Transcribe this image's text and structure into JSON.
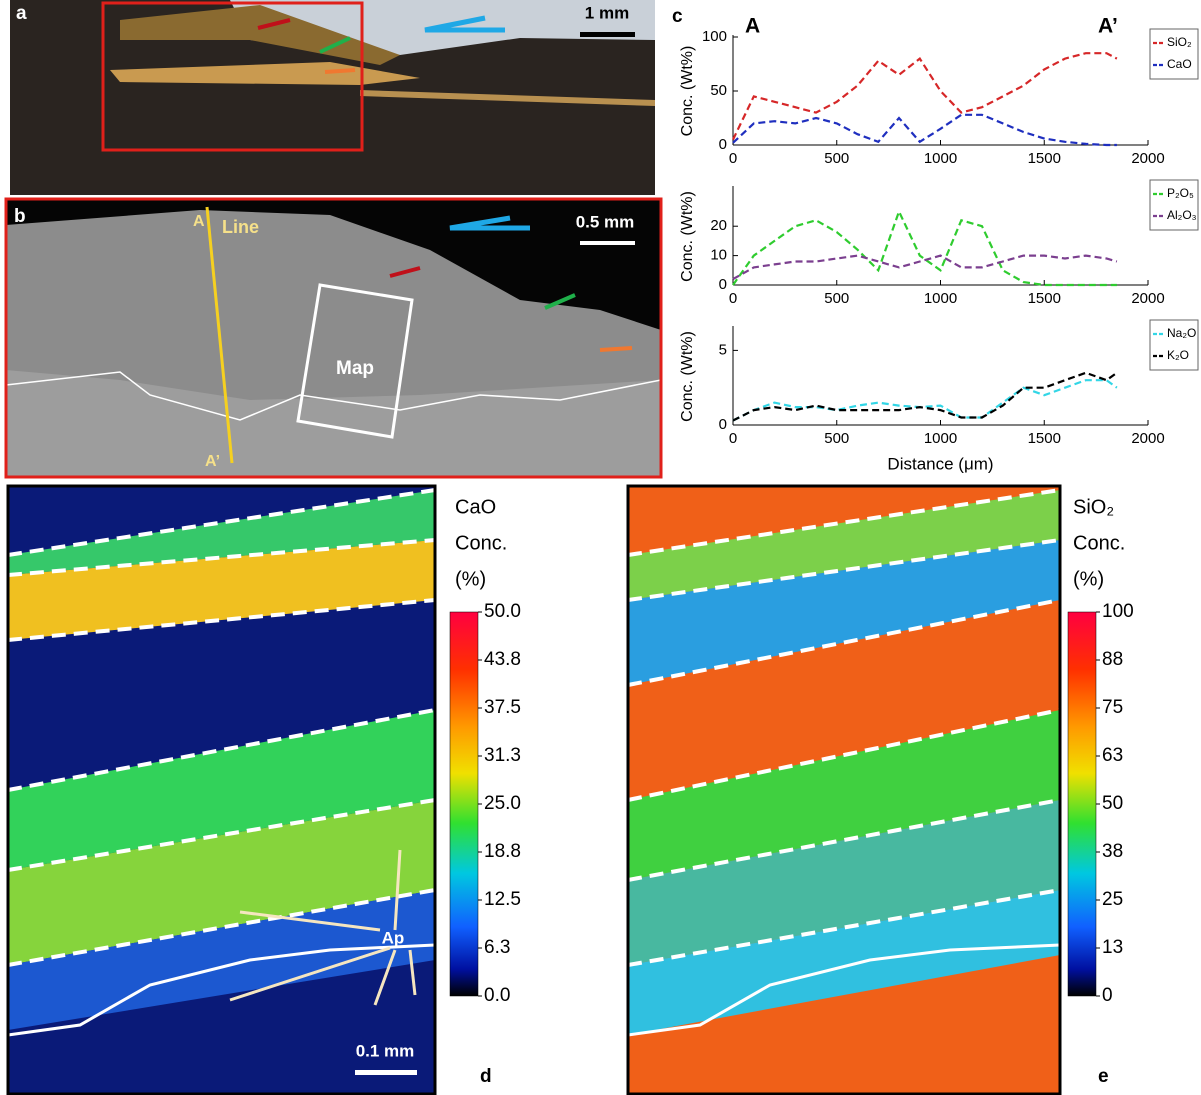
{
  "panel_a": {
    "label": "a",
    "scale_bar": "1 mm"
  },
  "panel_b": {
    "label": "b",
    "point_start": "A",
    "line": "Line",
    "scale_bar": "0.5 mm",
    "map": "Map",
    "point_end": "A’"
  },
  "panel_c": {
    "label": "c"
  },
  "chart_data": [
    {
      "type": "line",
      "ylabel": "Conc. (Wt%)",
      "start_label": "A",
      "end_label": "A’",
      "line_style": "dashed",
      "x": [
        0,
        100,
        200,
        300,
        400,
        500,
        600,
        700,
        800,
        900,
        1000,
        1100,
        1200,
        1300,
        1400,
        1500,
        1600,
        1700,
        1800,
        1850
      ],
      "series": [
        {
          "name": "SiO₂",
          "color": "#d62728",
          "values": [
            5,
            45,
            40,
            35,
            30,
            40,
            55,
            78,
            65,
            80,
            50,
            30,
            35,
            45,
            55,
            70,
            80,
            85,
            85,
            80
          ]
        },
        {
          "name": "CaO",
          "color": "#1f2fbf",
          "values": [
            2,
            20,
            22,
            20,
            25,
            20,
            10,
            3,
            25,
            3,
            15,
            28,
            28,
            20,
            12,
            6,
            3,
            1,
            0,
            0
          ]
        }
      ],
      "xlim": [
        0,
        2000
      ],
      "xticks": [
        0,
        500,
        1000,
        1500,
        2000
      ],
      "ylim": [
        0,
        100
      ],
      "yticks": [
        0,
        50,
        100
      ]
    },
    {
      "type": "line",
      "ylabel": "Conc. (Wt%)",
      "line_style": "dashed",
      "x": [
        0,
        100,
        200,
        300,
        400,
        500,
        600,
        700,
        800,
        900,
        1000,
        1100,
        1200,
        1300,
        1400,
        1500,
        1600,
        1700,
        1800,
        1850
      ],
      "series": [
        {
          "name": "P₂O₅",
          "color": "#2fcc2f",
          "values": [
            0,
            10,
            15,
            20,
            22,
            18,
            12,
            5,
            25,
            10,
            5,
            22,
            20,
            5,
            1,
            0,
            0,
            0,
            0,
            0
          ]
        },
        {
          "name": "Al₂O₃",
          "color": "#7b3f8f",
          "values": [
            2,
            6,
            7,
            8,
            8,
            9,
            10,
            8,
            6,
            8,
            10,
            6,
            6,
            8,
            10,
            10,
            9,
            10,
            9,
            8
          ]
        }
      ],
      "xlim": [
        0,
        2000
      ],
      "xticks": [
        0,
        500,
        1000,
        1500,
        2000
      ],
      "ylim": [
        0,
        33
      ],
      "yticks": [
        0,
        10,
        20
      ]
    },
    {
      "type": "line",
      "ylabel": "Conc. (Wt%)",
      "xlabel": "Distance (μm)",
      "line_style": "dashed",
      "x": [
        0,
        100,
        200,
        300,
        400,
        500,
        600,
        700,
        800,
        900,
        1000,
        1100,
        1200,
        1300,
        1400,
        1500,
        1600,
        1700,
        1800,
        1850
      ],
      "series": [
        {
          "name": "Na₂O",
          "color": "#33d6e6",
          "values": [
            0.3,
            1,
            1.5,
            1.2,
            1.2,
            1,
            1.3,
            1.5,
            1.3,
            1.2,
            1.3,
            0.5,
            0.5,
            1.5,
            2.5,
            2,
            2.5,
            3,
            3,
            2.5
          ]
        },
        {
          "name": "K₂O",
          "color": "#000000",
          "values": [
            0.3,
            1,
            1.2,
            1,
            1.3,
            1,
            1,
            1,
            1,
            1.2,
            1,
            0.5,
            0.5,
            1.3,
            2.5,
            2.5,
            3,
            3.5,
            3,
            3.5
          ]
        }
      ],
      "xlim": [
        0,
        2000
      ],
      "xticks": [
        0,
        500,
        1000,
        1500,
        2000
      ],
      "ylim": [
        0,
        6.5
      ],
      "yticks": [
        0,
        5
      ]
    }
  ],
  "panel_d": {
    "label": "d",
    "title": [
      "CaO",
      "Conc.",
      "(%)"
    ],
    "annotation": "Ap",
    "scale_bar": "0.1 mm"
  },
  "panel_e": {
    "label": "e",
    "title": [
      "SiO₂",
      "Conc.",
      "(%)"
    ]
  },
  "colorbars": [
    {
      "lim": [
        0,
        50
      ],
      "ticks": [
        {
          "value": 50,
          "label": "50.0"
        },
        {
          "value": 43.75,
          "label": "43.8"
        },
        {
          "value": 37.5,
          "label": "37.5"
        },
        {
          "value": 31.25,
          "label": "31.3"
        },
        {
          "value": 25,
          "label": "25.0"
        },
        {
          "value": 18.75,
          "label": "18.8"
        },
        {
          "value": 12.5,
          "label": "12.5"
        },
        {
          "value": 6.25,
          "label": "6.3"
        },
        {
          "value": 0,
          "label": "0.0"
        }
      ]
    },
    {
      "lim": [
        0,
        100
      ],
      "ticks": [
        100,
        {
          "value": 87.5,
          "label": "88"
        },
        75,
        {
          "value": 62.5,
          "label": "63"
        },
        50,
        {
          "value": 37.5,
          "label": "38"
        },
        25,
        {
          "value": 12.5,
          "label": "13"
        },
        0
      ]
    }
  ]
}
